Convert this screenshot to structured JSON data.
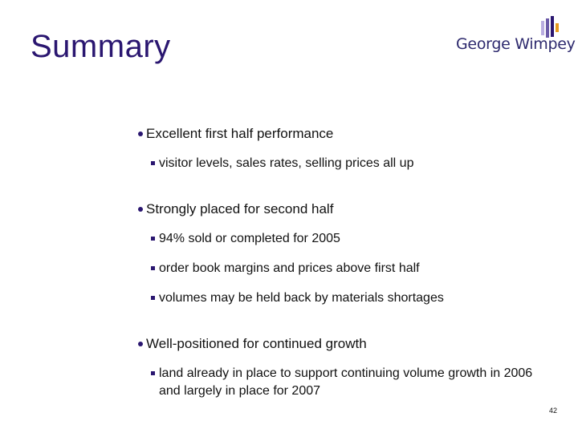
{
  "slide": {
    "title": "Summary",
    "page_number": "42"
  },
  "logo": {
    "text": "George Wimpey",
    "text_color": "#2e2a6e",
    "accent_colors": [
      "#2a1670",
      "#6b5aa8",
      "#b9ade0",
      "#e79a1e"
    ]
  },
  "sections": [
    {
      "heading": "Excellent first half performance",
      "items": [
        "visitor levels, sales rates, selling prices all up"
      ]
    },
    {
      "heading": "Strongly placed for second half",
      "items": [
        "94% sold or completed for 2005",
        "order book margins and prices above first half",
        "volumes may be held back by materials shortages"
      ]
    },
    {
      "heading": "Well-positioned for continued growth",
      "items": [
        "land already in place to support continuing volume growth in 2006 and largely in place for 2007"
      ]
    }
  ],
  "colors": {
    "title": "#2a1670",
    "bullet": "#2a1670"
  }
}
